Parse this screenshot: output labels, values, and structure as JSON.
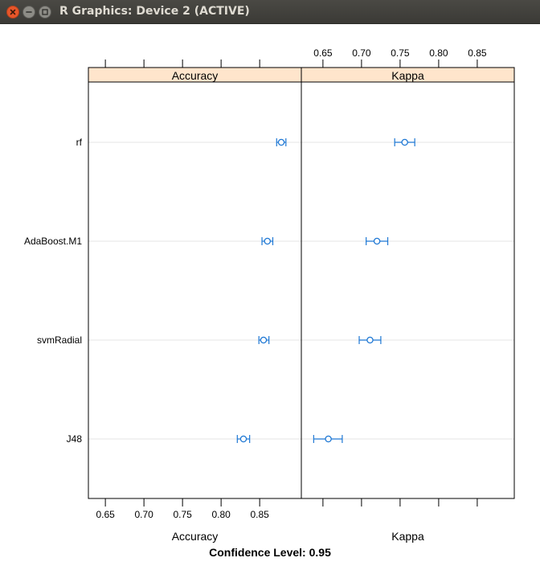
{
  "window": {
    "title": "R Graphics: Device 2 (ACTIVE)",
    "close_icon": "close-icon",
    "minimize_icon": "minimize-icon",
    "maximize_icon": "maximize-icon"
  },
  "chart_data": {
    "type": "dotplot",
    "title": "",
    "xlabel": "",
    "ylabel": "",
    "footer": "Confidence Level: 0.95",
    "models": [
      "rf",
      "AdaBoost.M1",
      "svmRadial",
      "J48"
    ],
    "grid": true,
    "color": "#1f78d4",
    "strip_color": "#ffe5cc",
    "panels": [
      {
        "name": "Accuracy",
        "axis_label": "Accuracy",
        "axis_side": "bottom",
        "ticks": [
          0.65,
          0.7,
          0.75,
          0.8,
          0.85
        ],
        "tick_labels": [
          "0.65",
          "0.70",
          "0.75",
          "0.80",
          "0.85"
        ],
        "xlim": [
          0.628,
          0.904
        ],
        "points": [
          {
            "model": "rf",
            "estimate": 0.878,
            "lower": 0.872,
            "upper": 0.884
          },
          {
            "model": "AdaBoost.M1",
            "estimate": 0.86,
            "lower": 0.853,
            "upper": 0.867
          },
          {
            "model": "svmRadial",
            "estimate": 0.855,
            "lower": 0.849,
            "upper": 0.862
          },
          {
            "model": "J48",
            "estimate": 0.829,
            "lower": 0.821,
            "upper": 0.837
          }
        ]
      },
      {
        "name": "Kappa",
        "axis_label": "Kappa",
        "axis_side": "top",
        "ticks": [
          0.65,
          0.7,
          0.75,
          0.8,
          0.85
        ],
        "tick_labels": [
          "0.65",
          "0.70",
          "0.75",
          "0.80",
          "0.85"
        ],
        "xlim": [
          0.622,
          0.898
        ],
        "points": [
          {
            "model": "rf",
            "estimate": 0.756,
            "lower": 0.743,
            "upper": 0.769
          },
          {
            "model": "AdaBoost.M1",
            "estimate": 0.72,
            "lower": 0.706,
            "upper": 0.734
          },
          {
            "model": "svmRadial",
            "estimate": 0.711,
            "lower": 0.697,
            "upper": 0.725
          },
          {
            "model": "J48",
            "estimate": 0.657,
            "lower": 0.638,
            "upper": 0.675
          }
        ]
      }
    ]
  }
}
